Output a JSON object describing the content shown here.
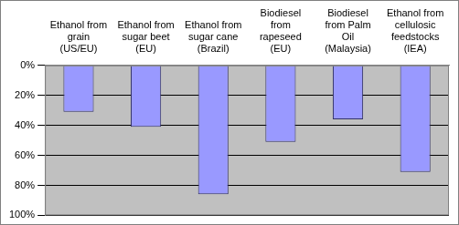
{
  "chart_data": {
    "type": "bar",
    "categories": [
      "Ethanol from grain (US/EU)",
      "Ethanol from sugar beet (EU)",
      "Ethanol from sugar cane (Brazil)",
      "Biodiesel from rapeseed (EU)",
      "Biodiesel from Palm Oil (Malaysia)",
      "Ethanol from cellulosic feedstocks (IEA)"
    ],
    "values": [
      31,
      41,
      86,
      51,
      36,
      71
    ],
    "color": "#9999ff",
    "ylim": [
      0,
      100
    ],
    "yticks": [
      {
        "value": 0,
        "label": "0%"
      },
      {
        "value": 20,
        "label": "20%"
      },
      {
        "value": 40,
        "label": "40%"
      },
      {
        "value": 60,
        "label": "60%"
      },
      {
        "value": 80,
        "label": "80%"
      },
      {
        "value": 100,
        "label": "100%"
      }
    ],
    "grid": true
  }
}
